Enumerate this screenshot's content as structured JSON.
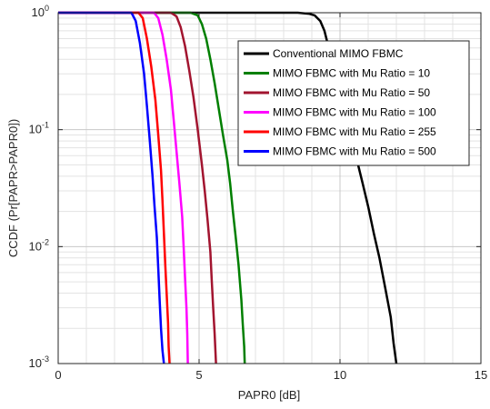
{
  "chart_data": {
    "type": "line",
    "title": "",
    "xlabel": "PAPR0 [dB]",
    "ylabel": "CCDF (Pr[PAPR>PAPR0])",
    "xlim": [
      0,
      15
    ],
    "ylim": [
      0.001,
      1
    ],
    "yscale": "log",
    "xticks": [
      0,
      5,
      10,
      15
    ],
    "xtick_labels": [
      "0",
      "5",
      "10",
      "15"
    ],
    "yticks": [
      0.001,
      0.01,
      0.1,
      1
    ],
    "ytick_labels": [
      {
        "base": "10",
        "exp": "-3"
      },
      {
        "base": "10",
        "exp": "-2"
      },
      {
        "base": "10",
        "exp": "-1"
      },
      {
        "base": "10",
        "exp": "0"
      }
    ],
    "grid": true,
    "minor_grid": true,
    "legend_position": "top-right",
    "series": [
      {
        "name": "Conventional  MIMO FBMC",
        "color": "#000000",
        "x": [
          0,
          8.5,
          8.9,
          9.1,
          9.3,
          9.45,
          9.6,
          9.8,
          10.0,
          10.2,
          10.4,
          10.6,
          10.8,
          11.0,
          11.2,
          11.4,
          11.6,
          11.8,
          11.9,
          12.0
        ],
        "y": [
          1,
          1,
          0.98,
          0.95,
          0.85,
          0.7,
          0.5,
          0.32,
          0.2,
          0.13,
          0.085,
          0.055,
          0.035,
          0.022,
          0.013,
          0.008,
          0.0045,
          0.0025,
          0.0015,
          0.001
        ]
      },
      {
        "name": "MIMO FBMC with Mu Ratio = 10",
        "color": "#007f00",
        "x": [
          0,
          4.7,
          4.95,
          5.1,
          5.25,
          5.4,
          5.55,
          5.7,
          5.85,
          6.0,
          6.1,
          6.2,
          6.3,
          6.4,
          6.45,
          6.5,
          6.55,
          6.6,
          6.62
        ],
        "y": [
          1,
          1,
          0.95,
          0.8,
          0.6,
          0.4,
          0.25,
          0.15,
          0.09,
          0.055,
          0.035,
          0.02,
          0.012,
          0.007,
          0.005,
          0.0035,
          0.0022,
          0.0014,
          0.001
        ]
      },
      {
        "name": "MIMO FBMC with Mu Ratio = 50",
        "color": "#a2142f",
        "x": [
          0,
          4.0,
          4.2,
          4.35,
          4.5,
          4.65,
          4.8,
          4.95,
          5.1,
          5.2,
          5.3,
          5.4,
          5.45,
          5.5,
          5.55,
          5.6
        ],
        "y": [
          1,
          1,
          0.93,
          0.75,
          0.52,
          0.32,
          0.19,
          0.1,
          0.05,
          0.03,
          0.017,
          0.009,
          0.005,
          0.003,
          0.0018,
          0.001
        ]
      },
      {
        "name": "MIMO FBMC with Mu Ratio = 100",
        "color": "#ff00ff",
        "x": [
          0,
          3.4,
          3.55,
          3.7,
          3.85,
          4.0,
          4.1,
          4.2,
          4.3,
          4.4,
          4.45,
          4.5,
          4.55,
          4.58,
          4.6
        ],
        "y": [
          1,
          1,
          0.9,
          0.65,
          0.4,
          0.22,
          0.12,
          0.065,
          0.035,
          0.018,
          0.01,
          0.0055,
          0.003,
          0.0018,
          0.001
        ]
      },
      {
        "name": "MIMO FBMC with Mu Ratio = 255",
        "color": "#ff0000",
        "x": [
          0,
          2.85,
          3.0,
          3.15,
          3.3,
          3.45,
          3.55,
          3.65,
          3.7,
          3.75,
          3.8,
          3.85,
          3.9,
          3.92,
          3.95
        ],
        "y": [
          1,
          1,
          0.9,
          0.6,
          0.35,
          0.18,
          0.09,
          0.045,
          0.025,
          0.013,
          0.007,
          0.004,
          0.0022,
          0.0014,
          0.001
        ]
      },
      {
        "name": "MIMO FBMC with Mu Ratio = 500",
        "color": "#0000ff",
        "x": [
          0,
          2.6,
          2.75,
          2.9,
          3.05,
          3.15,
          3.25,
          3.35,
          3.42,
          3.5,
          3.55,
          3.6,
          3.65,
          3.7,
          3.75
        ],
        "y": [
          1,
          1,
          0.85,
          0.55,
          0.3,
          0.16,
          0.08,
          0.04,
          0.022,
          0.012,
          0.0065,
          0.0035,
          0.002,
          0.0013,
          0.001
        ]
      }
    ]
  }
}
